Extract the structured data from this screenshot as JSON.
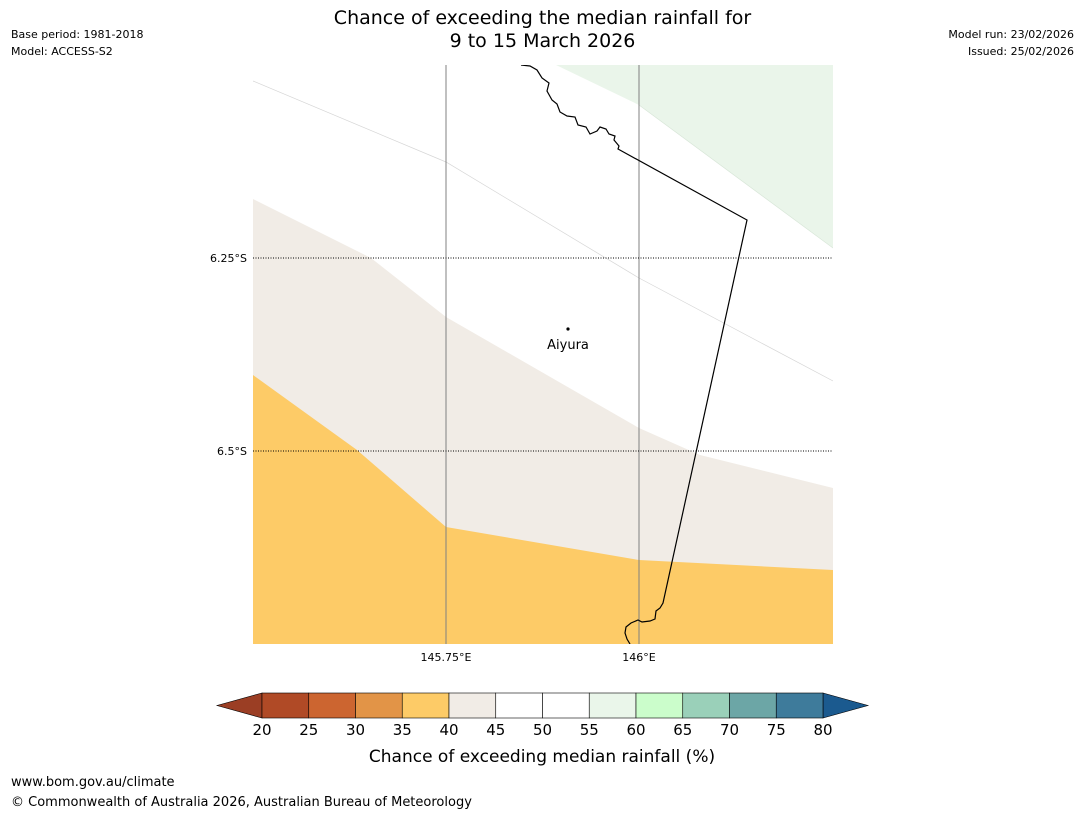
{
  "header": {
    "title_line1": "Chance of exceeding the median rainfall for",
    "title_line2": "9 to 15 March 2026",
    "base_period": "Base period: 1981-2018",
    "model": "Model: ACCESS-S2",
    "model_run": "Model run: 23/02/2026",
    "issued": "Issued: 25/02/2026"
  },
  "map": {
    "place_label": "Aiyura",
    "lat_labels": [
      "6.25°S",
      "6.5°S"
    ],
    "lon_labels": [
      "145.75°E",
      "146°E"
    ]
  },
  "colorbar": {
    "label": "Chance of exceeding median rainfall (%)",
    "ticks": [
      "20",
      "25",
      "30",
      "35",
      "40",
      "45",
      "50",
      "55",
      "60",
      "65",
      "70",
      "75",
      "80"
    ],
    "colors": [
      "#b04a26",
      "#cc6530",
      "#e29447",
      "#fdcb67",
      "#f1ece6",
      "#ffffff",
      "#ffffff",
      "#eaf6ea",
      "#cbfdcb",
      "#9ad0b9",
      "#6ca6a6",
      "#3e7b9b"
    ],
    "low_extend_color": "#9b3e24",
    "high_extend_color": "#1b5a8f"
  },
  "footer": {
    "url": "www.bom.gov.au/climate",
    "copyright": "© Commonwealth of Australia 2026, Australian Bureau of Meteorology"
  }
}
